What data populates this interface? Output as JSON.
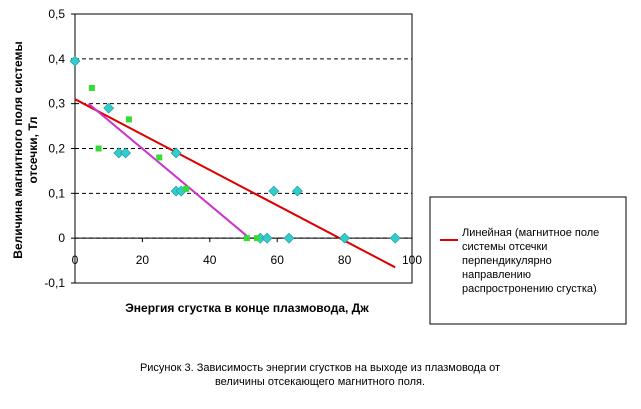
{
  "chart_data": {
    "type": "scatter",
    "title": "",
    "xlabel": "Энергия сгустка в конце плазмовода, Дж",
    "ylabel_line1": "Величина магнитного поля системы",
    "ylabel_line2": "отсечки, Тл",
    "xlim": [
      0,
      100
    ],
    "ylim": [
      -0.1,
      0.5
    ],
    "x_ticks": [
      "0",
      "20",
      "40",
      "60",
      "80",
      "100"
    ],
    "x_tick_values": [
      0,
      20,
      40,
      60,
      80,
      100
    ],
    "y_ticks": [
      "-0,1",
      "0",
      "0,1",
      "0,2",
      "0,3",
      "0,4",
      "0,5"
    ],
    "y_tick_values": [
      -0.1,
      0,
      0.1,
      0.2,
      0.3,
      0.4,
      0.5
    ],
    "grid": "horizontal-dashed",
    "legend_position": "right",
    "series": [
      {
        "marker": "diamond",
        "color": "#33cccc",
        "points": [
          [
            0,
            0.395
          ],
          [
            10,
            0.29
          ],
          [
            13,
            0.19
          ],
          [
            15,
            0.19
          ],
          [
            30,
            0.19
          ],
          [
            30,
            0.105
          ],
          [
            31.5,
            0.105
          ],
          [
            55,
            0
          ],
          [
            57,
            0
          ],
          [
            59,
            0.105
          ],
          [
            63.5,
            0
          ],
          [
            66,
            0.105
          ],
          [
            80,
            0
          ],
          [
            95,
            0
          ]
        ]
      },
      {
        "marker": "square",
        "color": "#33dd33",
        "points": [
          [
            5,
            0.335
          ],
          [
            7,
            0.2
          ],
          [
            16,
            0.265
          ],
          [
            25,
            0.18
          ],
          [
            33,
            0.11
          ],
          [
            51,
            0
          ],
          [
            54,
            0
          ]
        ]
      }
    ],
    "trendlines": [
      {
        "name": "Линейная (магнитное поле системы отсечки перпендикулярно направлению распростронению сгустка)",
        "color": "#dd0000",
        "from": [
          0,
          0.31
        ],
        "to": [
          95,
          -0.065
        ]
      },
      {
        "color": "#cc33cc",
        "from": [
          4,
          0.3
        ],
        "to": [
          51,
          0.005
        ]
      }
    ],
    "legend": {
      "line1": "Линейная (магнитное поле",
      "line2": "системы отсечки",
      "line3": "перпендикулярно",
      "line4": "направлению",
      "line5": "распростронению сгустка)"
    }
  },
  "caption": {
    "line1": "Рисунок 3. Зависимость энергии сгустков на выходе из плазмовода от",
    "line2": "величины отсекающего магнитного поля."
  }
}
